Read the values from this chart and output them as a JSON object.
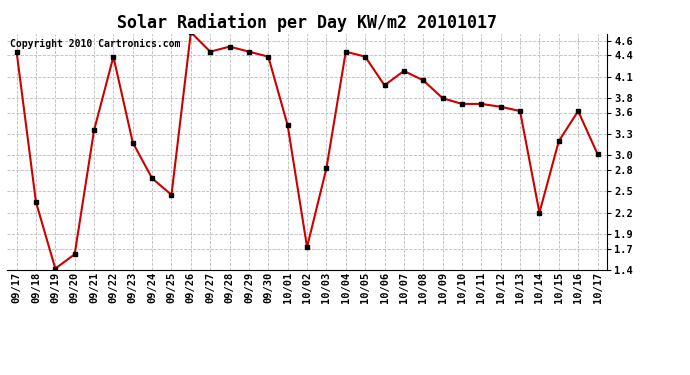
{
  "title": "Solar Radiation per Day KW/m2 20101017",
  "copyright": "Copyright 2010 Cartronics.com",
  "labels": [
    "09/17",
    "09/18",
    "09/19",
    "09/20",
    "09/21",
    "09/22",
    "09/23",
    "09/24",
    "09/25",
    "09/26",
    "09/27",
    "09/28",
    "09/29",
    "09/30",
    "10/01",
    "10/02",
    "10/03",
    "10/04",
    "10/05",
    "10/06",
    "10/07",
    "10/08",
    "10/09",
    "10/10",
    "10/11",
    "10/12",
    "10/13",
    "10/14",
    "10/15",
    "10/16",
    "10/17"
  ],
  "values": [
    4.45,
    2.35,
    1.42,
    1.62,
    3.35,
    4.38,
    3.18,
    2.68,
    2.45,
    4.72,
    4.45,
    4.52,
    4.45,
    4.38,
    3.42,
    1.72,
    2.82,
    4.45,
    4.38,
    3.98,
    4.18,
    4.05,
    3.8,
    3.72,
    3.72,
    3.68,
    3.62,
    2.2,
    3.2,
    3.62,
    3.02
  ],
  "line_color": "#cc0000",
  "marker_color": "#000000",
  "bg_color": "#ffffff",
  "grid_color": "#bbbbbb",
  "ylim": [
    1.4,
    4.7
  ],
  "yticks": [
    1.4,
    1.7,
    1.9,
    2.2,
    2.5,
    2.8,
    3.0,
    3.3,
    3.6,
    3.8,
    4.1,
    4.4,
    4.6
  ],
  "title_fontsize": 12,
  "copyright_fontsize": 7,
  "tick_fontsize": 7.5
}
